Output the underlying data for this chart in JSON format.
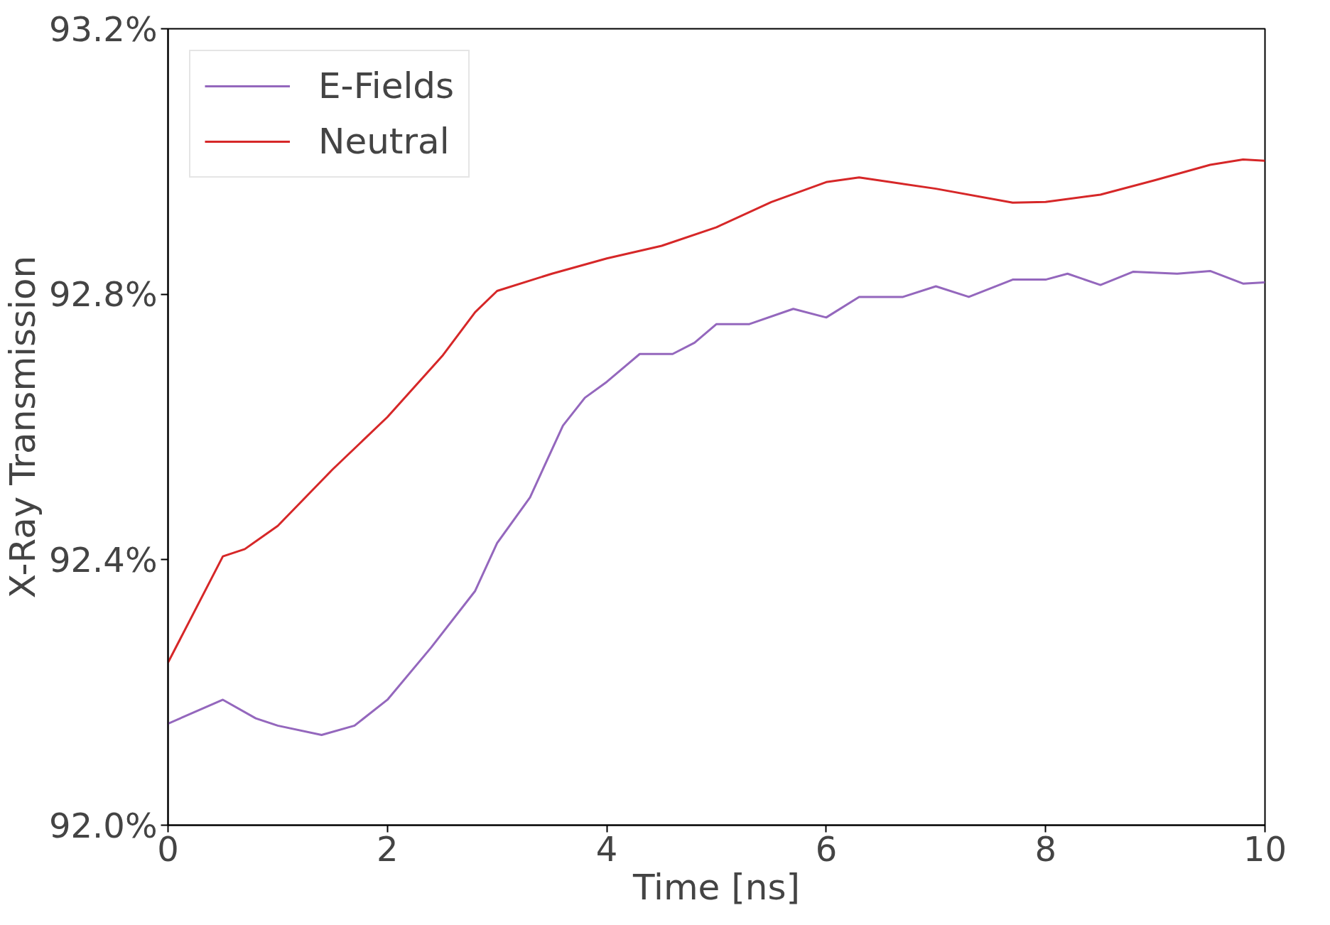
{
  "chart_data": {
    "type": "line",
    "xlabel": "Time [ns]",
    "ylabel": "X-Ray Transmission",
    "xlim": [
      0,
      10
    ],
    "xticks": [
      0,
      2,
      4,
      6,
      8,
      10
    ],
    "ylim": [
      92.0,
      93.2
    ],
    "yticks": [
      {
        "value": 92.0,
        "label": "92.0%"
      },
      {
        "value": 92.4,
        "label": "92.4%"
      },
      {
        "value": 92.8,
        "label": "92.8%"
      },
      {
        "value": 93.2,
        "label": "93.2%"
      }
    ],
    "grid": false,
    "legend": "top left",
    "line_style": "solid",
    "marker": "none",
    "series": [
      {
        "name": "E-Fields",
        "color": "#9467bd",
        "x": [
          0,
          0.5,
          0.8,
          1,
          1.4,
          1.7,
          2,
          2.4,
          2.8,
          3,
          3.3,
          3.6,
          3.8,
          4,
          4.3,
          4.6,
          4.8,
          5,
          5.3,
          5.7,
          6,
          6.3,
          6.7,
          7,
          7.3,
          7.7,
          8,
          8.2,
          8.5,
          8.8,
          9.2,
          9.5,
          9.8,
          10
        ],
        "values": [
          92.153,
          92.189,
          92.161,
          92.15,
          92.136,
          92.15,
          92.189,
          92.268,
          92.353,
          92.425,
          92.494,
          92.602,
          92.644,
          92.668,
          92.71,
          92.71,
          92.727,
          92.755,
          92.755,
          92.778,
          92.765,
          92.796,
          92.796,
          92.812,
          92.796,
          92.822,
          92.822,
          92.831,
          92.814,
          92.834,
          92.831,
          92.835,
          92.816,
          92.818
        ]
      },
      {
        "name": "Neutral",
        "color": "#d62728",
        "x": [
          0,
          0.5,
          0.7,
          1,
          1.5,
          2,
          2.5,
          2.8,
          3,
          3.5,
          4,
          4.5,
          5,
          5.5,
          6,
          6.3,
          7,
          7.7,
          8,
          8.5,
          9,
          9.5,
          9.8,
          10
        ],
        "values": [
          92.245,
          92.405,
          92.416,
          92.451,
          92.536,
          92.615,
          92.707,
          92.773,
          92.805,
          92.831,
          92.854,
          92.873,
          92.901,
          92.939,
          92.969,
          92.976,
          92.959,
          92.938,
          92.939,
          92.95,
          92.972,
          92.995,
          93.003,
          93.001
        ]
      }
    ]
  }
}
